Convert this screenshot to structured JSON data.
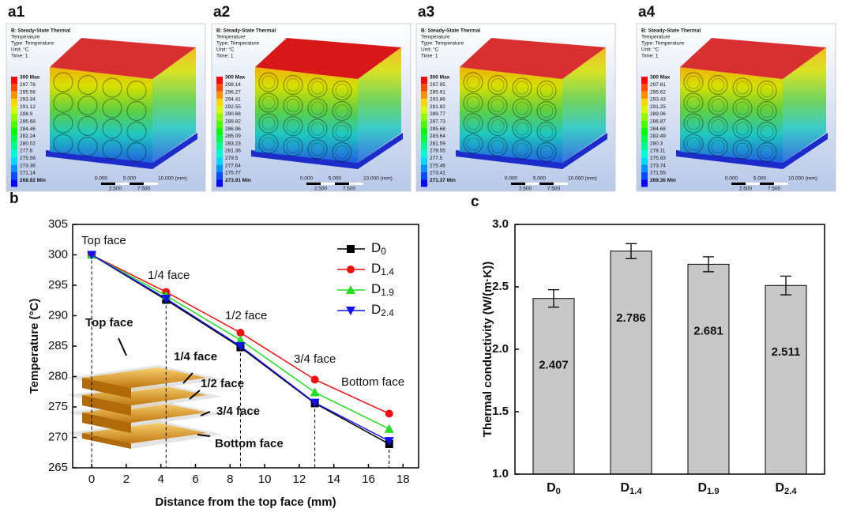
{
  "simulations": [
    {
      "label": "a1",
      "header": [
        "B: Steady-State Thermal",
        "Temperature",
        "Type: Temperature",
        "Unit: °C",
        "Time: 1"
      ],
      "legend": [
        "300 Max",
        "297.78",
        "295.56",
        "293.34",
        "291.12",
        "288.9",
        "286.68",
        "284.46",
        "282.24",
        "280.02",
        "277.8",
        "275.58",
        "273.36",
        "271.14",
        "268.92 Min"
      ],
      "scale_bar": [
        "0.000",
        "5.000",
        "10.000 (mm)",
        "2.500",
        "7.500"
      ]
    },
    {
      "label": "a2",
      "header": [
        "B: Steady-State Thermal",
        "Temperature",
        "Type: Temperature",
        "Unit: °C",
        "Time: 1"
      ],
      "legend": [
        "300 Max",
        "298.14",
        "296.27",
        "294.41",
        "292.55",
        "290.68",
        "288.82",
        "286.96",
        "285.09",
        "283.23",
        "281.36",
        "279.5",
        "277.64",
        "275.77",
        "273.91 Min"
      ],
      "scale_bar": [
        "0.000",
        "5.000",
        "10.000 (mm)",
        "2.500",
        "7.500"
      ]
    },
    {
      "label": "a3",
      "header": [
        "B: Steady-State Thermal",
        "Temperature",
        "Type: Temperature",
        "Unit: °C",
        "Time: 1"
      ],
      "legend": [
        "300 Max",
        "297.95",
        "295.91",
        "293.86",
        "291.82",
        "289.77",
        "287.73",
        "285.68",
        "283.64",
        "281.59",
        "279.55",
        "277.5",
        "275.46",
        "273.41",
        "271.37 Min"
      ],
      "scale_bar": [
        "0.000",
        "5.000",
        "10.000 (mm)",
        "2.500",
        "7.500"
      ]
    },
    {
      "label": "a4",
      "header": [
        "B: Steady-State Thermal",
        "Temperature",
        "Type: Temperature",
        "Unit: °C",
        "Time: 1"
      ],
      "legend": [
        "300 Max",
        "297.81",
        "295.62",
        "293.43",
        "291.25",
        "289.06",
        "286.87",
        "284.68",
        "282.49",
        "280.3",
        "278.11",
        "275.93",
        "273.74",
        "271.55",
        "269.36 Min"
      ],
      "scale_bar": [
        "0.000",
        "5.000",
        "10.000 (mm)",
        "2.500",
        "7.500"
      ]
    }
  ],
  "chart_data": [
    {
      "type": "line",
      "label": "b",
      "xlabel": "Distance from the top face (mm)",
      "ylabel": "Temperature (°C)",
      "x": [
        0,
        4.3,
        8.6,
        12.9,
        17.2
      ],
      "series": [
        {
          "name": "D0",
          "color": "#000000",
          "marker": "square",
          "values": [
            300,
            292.6,
            284.8,
            275.6,
            268.9
          ]
        },
        {
          "name": "D1.4",
          "color": "#ee1111",
          "marker": "circle",
          "values": [
            300,
            293.9,
            287.2,
            279.5,
            273.9
          ]
        },
        {
          "name": "D1.9",
          "color": "#22dd22",
          "marker": "triangle-up",
          "values": [
            300,
            293.3,
            286.0,
            277.4,
            271.4
          ]
        },
        {
          "name": "D2.4",
          "color": "#1111ee",
          "marker": "triangle-down",
          "values": [
            300,
            292.8,
            285.0,
            275.7,
            269.4
          ]
        }
      ],
      "xlim": [
        -1.1,
        18.9
      ],
      "xticks": [
        0,
        2,
        4,
        6,
        8,
        10,
        12,
        14,
        16,
        18
      ],
      "ylim": [
        265,
        305
      ],
      "yticks": [
        265,
        270,
        275,
        280,
        285,
        290,
        295,
        300,
        305
      ],
      "legend": "upper right",
      "annotations": [
        "Top face",
        "1/4 face",
        "1/2 face",
        "3/4 face",
        "Bottom face"
      ],
      "inset_labels": [
        "Top face",
        "1/4 face",
        "1/2 face",
        "3/4 face",
        "Bottom face"
      ]
    },
    {
      "type": "bar",
      "label": "c",
      "ylabel": "Thermal conductivity (W/(m·K))",
      "categories": [
        "D0",
        "D1.4",
        "D1.9",
        "D2.4"
      ],
      "values": [
        2.407,
        2.786,
        2.681,
        2.511
      ],
      "errors": [
        0.07,
        0.06,
        0.06,
        0.075
      ],
      "color": "#c8c8c8",
      "ylim": [
        1.0,
        3.0
      ],
      "yticks": [
        {
          "value": 1.0,
          "label": "1.0"
        },
        {
          "value": 1.5,
          "label": "1.5"
        },
        {
          "value": 2.0,
          "label": "2.0"
        },
        {
          "value": 2.5,
          "label": "2.5"
        },
        {
          "value": 3.0,
          "label": "3.0"
        }
      ]
    }
  ]
}
